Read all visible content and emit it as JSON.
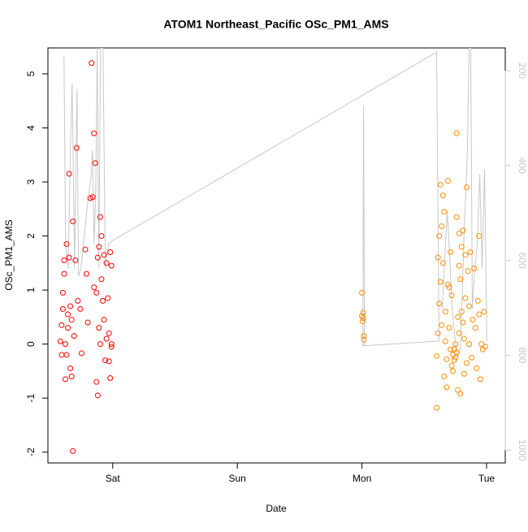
{
  "chart_data": {
    "type": "scatter",
    "title": "ATOM1 Northeast_Pacific OSc_PM1_AMS",
    "x_label": "Date",
    "y_label": "OSc_PM1_AMS",
    "xlim": [
      -0.52,
      3.15
    ],
    "xticks": [
      {
        "value": 0,
        "label": "Sat"
      },
      {
        "value": 1,
        "label": "Sun"
      },
      {
        "value": 2,
        "label": "Mon"
      },
      {
        "value": 3,
        "label": "Tue"
      }
    ],
    "ylim": [
      -2.2,
      5.48
    ],
    "yticks": [
      -2,
      -1,
      0,
      1,
      2,
      3,
      4,
      5
    ],
    "y2lim": [
      1027,
      152
    ],
    "y2ticks": [
      200,
      400,
      600,
      800,
      1000
    ],
    "y2_color": "#c8c8c8",
    "series": [
      {
        "color": "#ff0000",
        "x": [
          -0.42,
          -0.41,
          -0.41,
          -0.4,
          -0.4,
          -0.39,
          -0.39,
          -0.38,
          -0.38,
          -0.37,
          -0.37,
          -0.36,
          -0.36,
          -0.35,
          -0.35,
          -0.34,
          -0.34,
          -0.33,
          -0.33,
          -0.32,
          -0.32,
          -0.31,
          -0.3,
          -0.29,
          -0.28,
          -0.26,
          -0.25,
          -0.22,
          -0.21,
          -0.2,
          -0.18,
          -0.17,
          -0.16,
          -0.15,
          -0.15,
          -0.14,
          -0.13,
          -0.12,
          -0.12,
          -0.11,
          -0.1,
          -0.1,
          -0.09,
          -0.09,
          -0.08,
          -0.07,
          -0.06,
          -0.05,
          -0.05,
          -0.04,
          -0.03,
          -0.03,
          -0.02,
          -0.02,
          -0.01,
          -0.01,
          -0.01,
          -0.13,
          -0.11,
          -0.07
        ],
        "values": [
          0.05,
          -0.2,
          0.35,
          0.65,
          0.95,
          1.3,
          1.55,
          -0.65,
          0.0,
          1.85,
          -0.2,
          0.55,
          0.3,
          3.15,
          1.6,
          0.7,
          -0.45,
          0.45,
          -0.6,
          -1.98,
          2.27,
          0.15,
          1.55,
          3.63,
          0.8,
          0.65,
          -0.17,
          1.75,
          1.3,
          0.4,
          2.7,
          5.2,
          2.72,
          3.9,
          1.05,
          3.35,
          -0.7,
          -0.95,
          1.6,
          0.3,
          2.35,
          0.0,
          2.0,
          1.2,
          0.8,
          0.45,
          -0.3,
          1.5,
          0.1,
          0.85,
          -0.32,
          0.2,
          -0.63,
          1.7,
          1.45,
          0.0,
          -0.05,
          0.95,
          1.8,
          1.65
        ]
      },
      {
        "color": "#ff8c00",
        "x": [
          2.0,
          2.0,
          2.005,
          2.01,
          2.01,
          2.015,
          2.015,
          2.6,
          2.6,
          2.61,
          2.61,
          2.62,
          2.62,
          2.63,
          2.63,
          2.64,
          2.64,
          2.65,
          2.65,
          2.66,
          2.66,
          2.67,
          2.67,
          2.68,
          2.68,
          2.69,
          2.69,
          2.7,
          2.7,
          2.71,
          2.71,
          2.72,
          2.72,
          2.73,
          2.73,
          2.74,
          2.74,
          2.75,
          2.75,
          2.76,
          2.76,
          2.77,
          2.77,
          2.78,
          2.78,
          2.79,
          2.79,
          2.8,
          2.8,
          2.81,
          2.81,
          2.82,
          2.82,
          2.83,
          2.83,
          2.84,
          2.84,
          2.85,
          2.86,
          2.86,
          2.87,
          2.88,
          2.89,
          2.9,
          2.91,
          2.92,
          2.93,
          2.94,
          2.94,
          2.95,
          2.96,
          2.97,
          2.98,
          2.99,
          2.76,
          2.78
        ],
        "values": [
          0.95,
          0.52,
          0.42,
          0.58,
          0.48,
          0.15,
          0.08,
          -1.18,
          -0.22,
          0.2,
          1.6,
          2.0,
          0.75,
          2.95,
          1.15,
          2.18,
          0.35,
          2.75,
          1.5,
          2.45,
          -0.6,
          0.05,
          0.6,
          -0.28,
          -0.8,
          3.02,
          1.1,
          1.05,
          0.3,
          1.7,
          -0.1,
          -0.4,
          0.9,
          -0.2,
          -0.5,
          -0.1,
          -0.3,
          0.0,
          -0.25,
          3.9,
          -0.15,
          -0.85,
          0.5,
          1.45,
          0.2,
          1.2,
          -0.92,
          1.8,
          0.6,
          2.1,
          0.4,
          0.1,
          -0.55,
          1.65,
          0.85,
          2.9,
          -0.35,
          1.35,
          0.7,
          0.0,
          1.7,
          -0.25,
          0.45,
          1.4,
          0.3,
          -0.45,
          0.8,
          2.0,
          0.55,
          -0.65,
          0.0,
          -0.1,
          0.6,
          -0.05,
          2.35,
          2.05
        ]
      },
      {
        "type": "line",
        "axis": "y2",
        "color": "#c8c8c8",
        "x": [
          -0.391,
          -0.378,
          -0.358,
          -0.339,
          -0.326,
          -0.306,
          -0.287,
          -0.274,
          -0.254,
          -0.228,
          -0.202,
          -0.176,
          -0.163,
          -0.15,
          -0.137,
          -0.124,
          -0.111,
          -0.098,
          -0.078,
          -0.059,
          -0.033,
          0,
          2.599,
          2.619,
          2.007,
          2.013,
          2.02,
          null,
          2.645,
          2.664,
          2.684,
          2.703,
          2.723,
          2.749,
          2.769,
          2.788,
          2.808,
          2.821,
          2.834,
          2.847,
          2.86,
          2.873,
          2.886,
          2.906,
          2.925,
          2.945,
          2.964,
          2.984,
          3.003
        ],
        "values": [
          169,
          565,
          616,
          359,
          227,
          616,
          239,
          633,
          616,
          548,
          479,
          428,
          368,
          565,
          462,
          152,
          616,
          152,
          152,
          616,
          565,
          558,
          161,
          770,
          780,
          274,
          780,
          null,
          702,
          599,
          496,
          582,
          702,
          770,
          805,
          787,
          650,
          530,
          462,
          363,
          152,
          152,
          702,
          616,
          565,
          419,
          616,
          407,
          770
        ]
      }
    ]
  }
}
